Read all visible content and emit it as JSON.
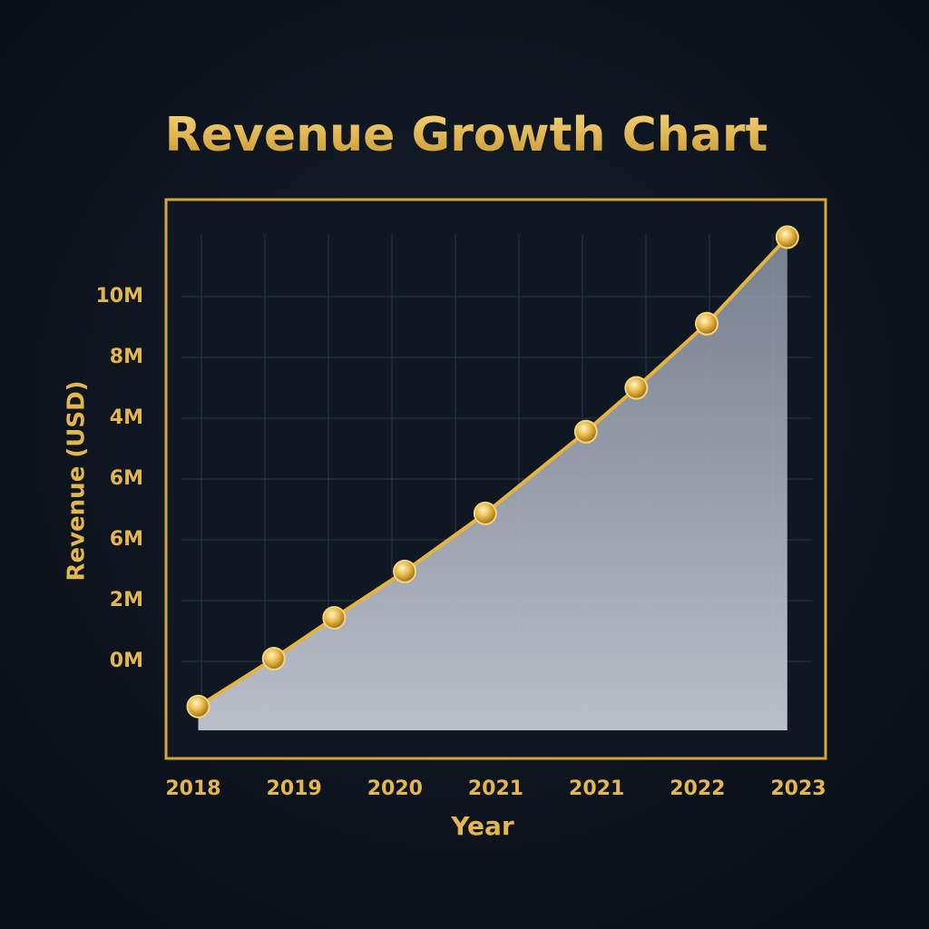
{
  "chart_data": {
    "type": "area",
    "title": "Revenue Growth Chart",
    "x_label": "Year",
    "y_label": "Revenue (USD)",
    "x_labels": [
      "2018",
      "2019",
      "2020",
      "2021",
      "2021",
      "2022",
      "2023"
    ],
    "y_labels": [
      "0M",
      "2M",
      "6M",
      "6M",
      "4M",
      "8M",
      "10M"
    ],
    "xlim": [
      -0.27,
      6.28
    ],
    "ylim": [
      -2.64,
      12.6
    ],
    "series": [
      {
        "color": "#e6b43c",
        "x": [
          0.05,
          0.8,
          1.4,
          2.1,
          2.9,
          3.9,
          4.4,
          5.1,
          5.9
        ],
        "values": [
          -1.24,
          0.07,
          1.19,
          2.46,
          4.05,
          6.29,
          7.49,
          9.25,
          11.62
        ]
      }
    ],
    "grid": true
  }
}
